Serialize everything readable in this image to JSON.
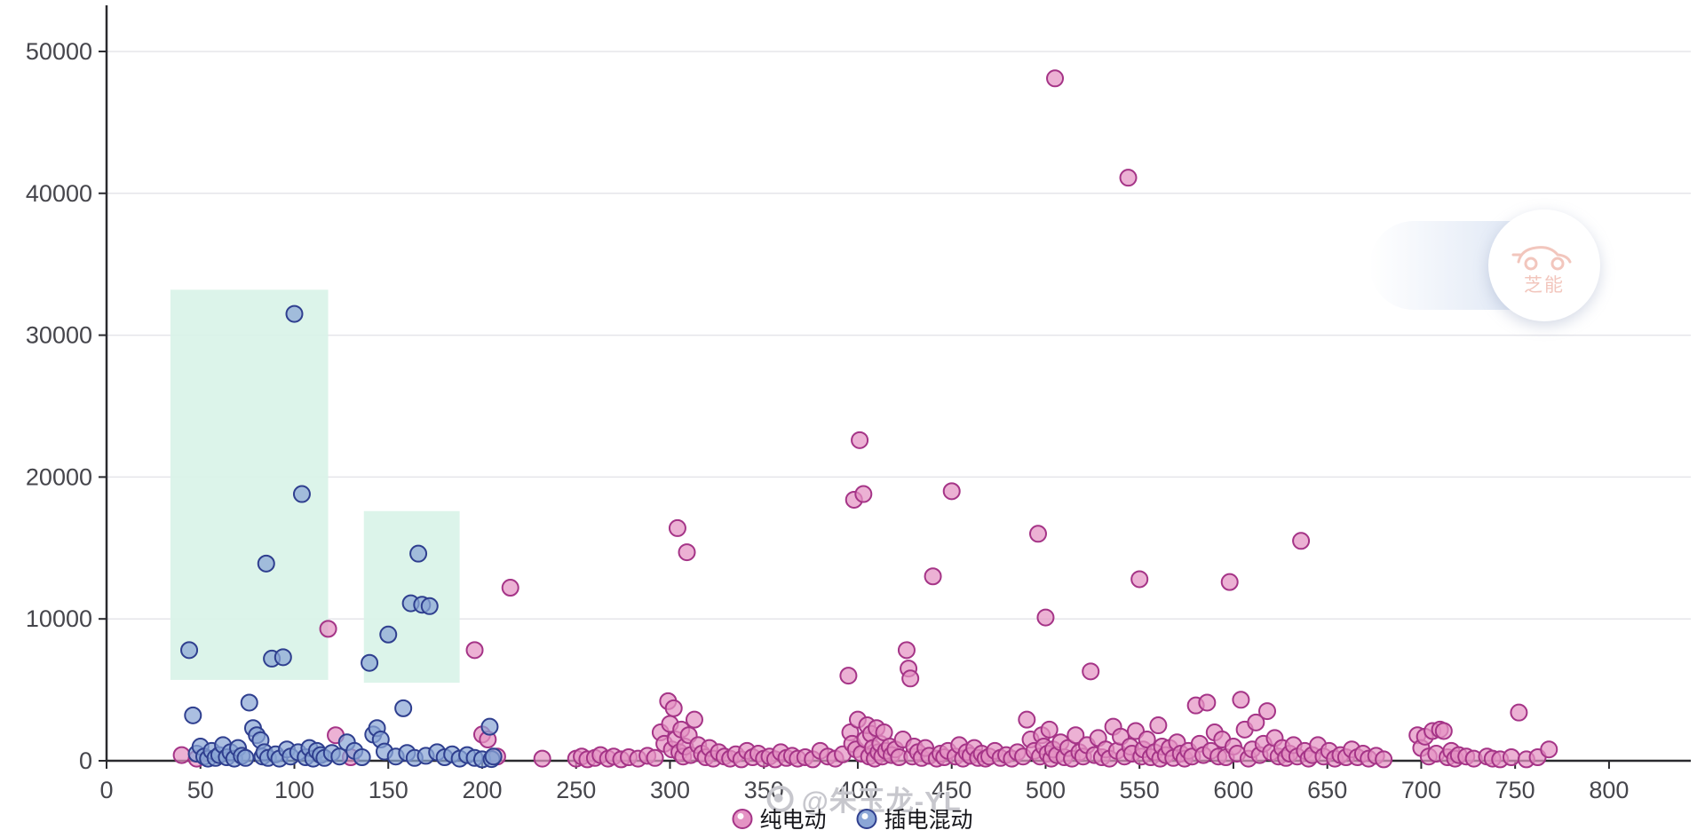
{
  "watermarks": {
    "author_text": "@朱玉龙-YL",
    "brand_text": "芝能"
  },
  "legend": {
    "items": [
      {
        "label": "纯电动"
      },
      {
        "label": "插电混动"
      }
    ]
  },
  "chart_data": {
    "type": "scatter",
    "title": "",
    "xlabel": "",
    "ylabel": "",
    "xlim": [
      0,
      818
    ],
    "ylim": [
      0,
      53000
    ],
    "x_ticks": [
      0,
      50,
      100,
      150,
      200,
      250,
      300,
      350,
      400,
      450,
      500,
      550,
      600,
      650,
      700,
      750,
      800
    ],
    "y_ticks": [
      0,
      10000,
      20000,
      30000,
      40000,
      50000
    ],
    "grid": "horizontal",
    "legend_position": "bottom-center",
    "colors": {
      "axis": "#2a2a2e",
      "grid": "#e5e5ea",
      "tick_label": "#46464c",
      "background": "#ffffff"
    },
    "highlight_regions": [
      {
        "x1": 34,
        "x2": 118,
        "y1": 5700,
        "y2": 33200,
        "color": "#d8f3e8"
      },
      {
        "x1": 137,
        "x2": 188,
        "y1": 5500,
        "y2": 17600,
        "color": "#d8f3e8"
      }
    ],
    "series": [
      {
        "name": "纯电动",
        "fill": "#e493c4",
        "stroke": "#a53487",
        "points": [
          [
            40,
            400
          ],
          [
            48,
            150
          ],
          [
            118,
            9300
          ],
          [
            122,
            1800
          ],
          [
            130,
            250
          ],
          [
            196,
            7800
          ],
          [
            200,
            1850
          ],
          [
            203,
            1500
          ],
          [
            208,
            300
          ],
          [
            215,
            12200
          ],
          [
            232,
            150
          ],
          [
            250,
            150
          ],
          [
            253,
            300
          ],
          [
            256,
            100
          ],
          [
            260,
            200
          ],
          [
            263,
            400
          ],
          [
            267,
            150
          ],
          [
            270,
            300
          ],
          [
            274,
            100
          ],
          [
            278,
            250
          ],
          [
            283,
            150
          ],
          [
            288,
            350
          ],
          [
            292,
            200
          ],
          [
            295,
            2000
          ],
          [
            297,
            1200
          ],
          [
            299,
            4200
          ],
          [
            300,
            2600
          ],
          [
            301,
            800
          ],
          [
            302,
            3700
          ],
          [
            303,
            1500
          ],
          [
            304,
            16400
          ],
          [
            305,
            600
          ],
          [
            306,
            2200
          ],
          [
            307,
            300
          ],
          [
            308,
            1000
          ],
          [
            309,
            14700
          ],
          [
            310,
            1800
          ],
          [
            311,
            400
          ],
          [
            313,
            2900
          ],
          [
            315,
            1100
          ],
          [
            317,
            500
          ],
          [
            319,
            250
          ],
          [
            321,
            900
          ],
          [
            323,
            150
          ],
          [
            326,
            600
          ],
          [
            329,
            300
          ],
          [
            332,
            150
          ],
          [
            335,
            450
          ],
          [
            338,
            100
          ],
          [
            341,
            700
          ],
          [
            344,
            250
          ],
          [
            347,
            500
          ],
          [
            350,
            150
          ],
          [
            353,
            300
          ],
          [
            356,
            100
          ],
          [
            359,
            600
          ],
          [
            362,
            200
          ],
          [
            365,
            350
          ],
          [
            368,
            150
          ],
          [
            372,
            250
          ],
          [
            376,
            100
          ],
          [
            380,
            700
          ],
          [
            384,
            300
          ],
          [
            388,
            150
          ],
          [
            392,
            450
          ],
          [
            395,
            6000
          ],
          [
            396,
            2000
          ],
          [
            397,
            1200
          ],
          [
            398,
            18400
          ],
          [
            399,
            800
          ],
          [
            400,
            2900
          ],
          [
            401,
            22600
          ],
          [
            402,
            500
          ],
          [
            403,
            18800
          ],
          [
            404,
            1500
          ],
          [
            405,
            2500
          ],
          [
            406,
            300
          ],
          [
            407,
            1900
          ],
          [
            408,
            900
          ],
          [
            409,
            150
          ],
          [
            410,
            2300
          ],
          [
            411,
            600
          ],
          [
            412,
            1200
          ],
          [
            413,
            300
          ],
          [
            414,
            2000
          ],
          [
            415,
            700
          ],
          [
            417,
            1000
          ],
          [
            418,
            400
          ],
          [
            420,
            800
          ],
          [
            422,
            250
          ],
          [
            424,
            1500
          ],
          [
            426,
            7800
          ],
          [
            427,
            6500
          ],
          [
            428,
            5800
          ],
          [
            429,
            300
          ],
          [
            430,
            1000
          ],
          [
            432,
            600
          ],
          [
            434,
            200
          ],
          [
            436,
            900
          ],
          [
            438,
            350
          ],
          [
            440,
            13000
          ],
          [
            442,
            150
          ],
          [
            444,
            500
          ],
          [
            446,
            250
          ],
          [
            448,
            700
          ],
          [
            450,
            19000
          ],
          [
            452,
            300
          ],
          [
            454,
            1100
          ],
          [
            456,
            150
          ],
          [
            458,
            600
          ],
          [
            460,
            350
          ],
          [
            462,
            900
          ],
          [
            464,
            200
          ],
          [
            466,
            500
          ],
          [
            468,
            150
          ],
          [
            470,
            300
          ],
          [
            473,
            700
          ],
          [
            476,
            200
          ],
          [
            479,
            400
          ],
          [
            482,
            150
          ],
          [
            485,
            600
          ],
          [
            488,
            300
          ],
          [
            490,
            2900
          ],
          [
            492,
            1500
          ],
          [
            494,
            700
          ],
          [
            496,
            16000
          ],
          [
            497,
            300
          ],
          [
            498,
            1800
          ],
          [
            499,
            1000
          ],
          [
            500,
            10100
          ],
          [
            501,
            500
          ],
          [
            502,
            2200
          ],
          [
            503,
            150
          ],
          [
            504,
            800
          ],
          [
            505,
            48100
          ],
          [
            506,
            400
          ],
          [
            508,
            1300
          ],
          [
            510,
            250
          ],
          [
            512,
            900
          ],
          [
            514,
            150
          ],
          [
            516,
            1800
          ],
          [
            518,
            600
          ],
          [
            520,
            300
          ],
          [
            522,
            1100
          ],
          [
            524,
            6300
          ],
          [
            526,
            400
          ],
          [
            528,
            1600
          ],
          [
            530,
            250
          ],
          [
            532,
            800
          ],
          [
            534,
            150
          ],
          [
            536,
            2400
          ],
          [
            538,
            700
          ],
          [
            540,
            1700
          ],
          [
            542,
            300
          ],
          [
            544,
            41100
          ],
          [
            545,
            1000
          ],
          [
            546,
            500
          ],
          [
            548,
            2100
          ],
          [
            550,
            12800
          ],
          [
            551,
            300
          ],
          [
            552,
            800
          ],
          [
            554,
            1500
          ],
          [
            556,
            250
          ],
          [
            558,
            600
          ],
          [
            560,
            2500
          ],
          [
            561,
            150
          ],
          [
            562,
            1000
          ],
          [
            564,
            400
          ],
          [
            566,
            900
          ],
          [
            568,
            200
          ],
          [
            570,
            1300
          ],
          [
            572,
            500
          ],
          [
            574,
            150
          ],
          [
            576,
            700
          ],
          [
            578,
            300
          ],
          [
            580,
            3900
          ],
          [
            582,
            1200
          ],
          [
            584,
            400
          ],
          [
            586,
            4100
          ],
          [
            588,
            700
          ],
          [
            590,
            2000
          ],
          [
            592,
            300
          ],
          [
            594,
            1500
          ],
          [
            596,
            250
          ],
          [
            598,
            12600
          ],
          [
            600,
            1000
          ],
          [
            602,
            500
          ],
          [
            604,
            4300
          ],
          [
            606,
            2200
          ],
          [
            608,
            150
          ],
          [
            610,
            800
          ],
          [
            612,
            2700
          ],
          [
            614,
            400
          ],
          [
            616,
            1200
          ],
          [
            618,
            3500
          ],
          [
            620,
            600
          ],
          [
            622,
            1600
          ],
          [
            624,
            300
          ],
          [
            626,
            900
          ],
          [
            628,
            200
          ],
          [
            630,
            500
          ],
          [
            632,
            1100
          ],
          [
            634,
            300
          ],
          [
            636,
            15500
          ],
          [
            638,
            700
          ],
          [
            640,
            150
          ],
          [
            642,
            400
          ],
          [
            645,
            1100
          ],
          [
            648,
            300
          ],
          [
            651,
            700
          ],
          [
            654,
            150
          ],
          [
            657,
            400
          ],
          [
            660,
            250
          ],
          [
            663,
            800
          ],
          [
            666,
            250
          ],
          [
            669,
            500
          ],
          [
            672,
            150
          ],
          [
            676,
            350
          ],
          [
            680,
            100
          ],
          [
            698,
            1800
          ],
          [
            700,
            900
          ],
          [
            702,
            1700
          ],
          [
            704,
            300
          ],
          [
            706,
            2100
          ],
          [
            708,
            500
          ],
          [
            710,
            2200
          ],
          [
            712,
            2100
          ],
          [
            714,
            250
          ],
          [
            716,
            700
          ],
          [
            718,
            150
          ],
          [
            720,
            400
          ],
          [
            724,
            300
          ],
          [
            728,
            150
          ],
          [
            735,
            300
          ],
          [
            738,
            150
          ],
          [
            742,
            100
          ],
          [
            748,
            250
          ],
          [
            752,
            3400
          ],
          [
            756,
            100
          ],
          [
            762,
            250
          ],
          [
            768,
            800
          ]
        ]
      },
      {
        "name": "插电混动",
        "fill": "#8ba6d6",
        "stroke": "#2f3f8f",
        "points": [
          [
            44,
            7800
          ],
          [
            46,
            3200
          ],
          [
            48,
            500
          ],
          [
            50,
            1000
          ],
          [
            52,
            300
          ],
          [
            54,
            150
          ],
          [
            56,
            700
          ],
          [
            58,
            200
          ],
          [
            60,
            400
          ],
          [
            62,
            1100
          ],
          [
            64,
            250
          ],
          [
            66,
            600
          ],
          [
            68,
            150
          ],
          [
            70,
            900
          ],
          [
            72,
            350
          ],
          [
            74,
            200
          ],
          [
            76,
            4100
          ],
          [
            78,
            2300
          ],
          [
            80,
            1800
          ],
          [
            82,
            1450
          ],
          [
            83,
            300
          ],
          [
            84,
            600
          ],
          [
            85,
            13900
          ],
          [
            86,
            200
          ],
          [
            88,
            7200
          ],
          [
            90,
            450
          ],
          [
            92,
            150
          ],
          [
            94,
            7300
          ],
          [
            96,
            800
          ],
          [
            98,
            300
          ],
          [
            100,
            31500
          ],
          [
            102,
            600
          ],
          [
            104,
            18800
          ],
          [
            106,
            250
          ],
          [
            108,
            900
          ],
          [
            110,
            150
          ],
          [
            112,
            700
          ],
          [
            114,
            400
          ],
          [
            116,
            200
          ],
          [
            120,
            550
          ],
          [
            124,
            300
          ],
          [
            128,
            1300
          ],
          [
            132,
            700
          ],
          [
            136,
            250
          ],
          [
            140,
            6900
          ],
          [
            142,
            1850
          ],
          [
            144,
            2300
          ],
          [
            146,
            1500
          ],
          [
            148,
            650
          ],
          [
            150,
            8900
          ],
          [
            154,
            300
          ],
          [
            158,
            3700
          ],
          [
            160,
            550
          ],
          [
            162,
            11100
          ],
          [
            164,
            200
          ],
          [
            166,
            14600
          ],
          [
            168,
            11000
          ],
          [
            170,
            350
          ],
          [
            172,
            10900
          ],
          [
            176,
            600
          ],
          [
            180,
            250
          ],
          [
            184,
            450
          ],
          [
            188,
            150
          ],
          [
            192,
            400
          ],
          [
            196,
            200
          ],
          [
            200,
            100
          ],
          [
            204,
            2400
          ],
          [
            205,
            120
          ],
          [
            206,
            300
          ]
        ]
      }
    ]
  }
}
